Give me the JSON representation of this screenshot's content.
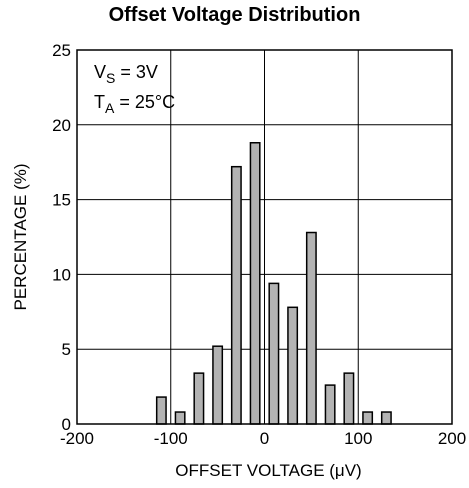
{
  "chart_data": {
    "type": "bar",
    "title": "Offset Voltage Distribution",
    "xlabel": "OFFSET VOLTAGE (μV)",
    "ylabel": "PERCENTAGE (%)",
    "xlim": [
      -200,
      200
    ],
    "ylim": [
      0,
      25
    ],
    "xticks": [
      -200,
      -100,
      0,
      100,
      200
    ],
    "yticks": [
      0,
      5,
      10,
      15,
      20,
      25
    ],
    "grid": true,
    "bin_width": 10,
    "bin_centers": [
      -110,
      -90,
      -70,
      -50,
      -30,
      -10,
      10,
      30,
      50,
      70,
      90,
      110,
      130
    ],
    "values": [
      1.8,
      0.8,
      3.4,
      5.2,
      17.2,
      18.8,
      9.4,
      7.8,
      12.8,
      2.6,
      3.4,
      0.8,
      0.8
    ],
    "bar_color": "#b3b3b3",
    "annotations": [
      {
        "main": "V",
        "sub": "S",
        "rest": " = 3V"
      },
      {
        "main": "T",
        "sub": "A",
        "rest": " = 25°C"
      }
    ]
  }
}
